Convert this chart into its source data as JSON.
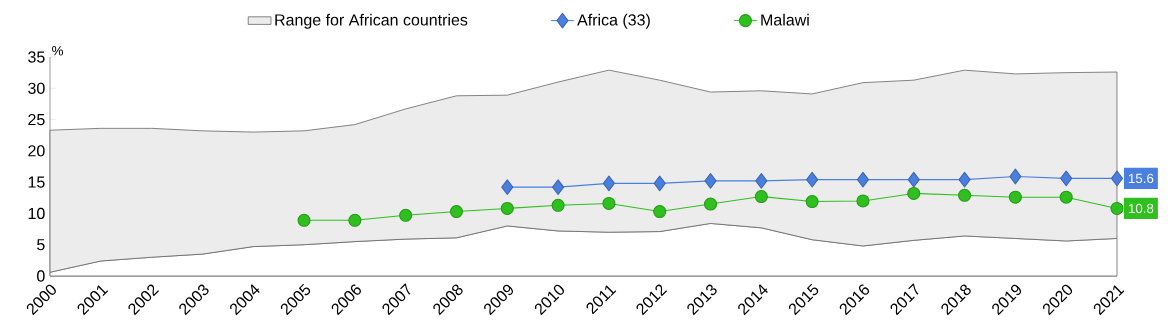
{
  "chart_data": {
    "type": "line",
    "ylabel": "%",
    "stacked": true,
    "categories": [
      "2000",
      "2001",
      "2002",
      "2003",
      "2004",
      "2005",
      "2006",
      "2007",
      "2008",
      "2009",
      "2010",
      "2011",
      "2012",
      "2013",
      "2014",
      "2015",
      "2016",
      "2017",
      "2018",
      "2019",
      "2020",
      "2021"
    ],
    "ylim": [
      0,
      35
    ],
    "yticks": [
      0,
      5,
      10,
      15,
      20,
      25,
      30,
      35
    ],
    "legend": "top",
    "series": [
      {
        "type": "area",
        "color": "#ffffff",
        "values": [
          0.6,
          2.4,
          3.0,
          3.5,
          4.7,
          5.0,
          5.5,
          5.9,
          6.1,
          8.0,
          7.2,
          7.0,
          7.1,
          8.4,
          7.7,
          5.8,
          4.8,
          5.7,
          6.4,
          6.0,
          5.6,
          6.0
        ]
      },
      {
        "name": "Range for African countries",
        "type": "area",
        "color": "#ececec",
        "values": [
          22.7,
          21.2,
          20.6,
          19.7,
          18.3,
          18.2,
          18.7,
          20.8,
          22.7,
          20.9,
          23.8,
          25.9,
          24.2,
          21.0,
          21.9,
          23.3,
          26.1,
          25.6,
          26.5,
          26.3,
          26.9,
          26.6
        ]
      },
      {
        "name": "Africa (33)",
        "color": "#4a7fe0",
        "marker": "diamond",
        "values": [
          null,
          null,
          null,
          null,
          null,
          null,
          null,
          null,
          null,
          14.2,
          14.2,
          14.8,
          14.8,
          15.2,
          15.2,
          15.4,
          15.4,
          15.4,
          15.4,
          15.9,
          15.6,
          15.6
        ],
        "value_labels": [
          null,
          null,
          null,
          null,
          null,
          null,
          null,
          null,
          null,
          null,
          null,
          null,
          null,
          null,
          null,
          null,
          null,
          null,
          null,
          null,
          null,
          "15.6"
        ]
      },
      {
        "name": "Malawi",
        "color": "#2fbf1f",
        "marker": "circle",
        "values": [
          null,
          null,
          null,
          null,
          null,
          8.9,
          8.9,
          9.7,
          10.3,
          10.8,
          11.3,
          11.6,
          10.3,
          11.5,
          12.7,
          11.9,
          12.0,
          13.2,
          12.9,
          12.6,
          12.6,
          10.8
        ],
        "value_labels": [
          null,
          null,
          null,
          null,
          null,
          null,
          null,
          null,
          null,
          null,
          null,
          null,
          null,
          null,
          null,
          null,
          null,
          null,
          null,
          null,
          null,
          "10.8"
        ]
      }
    ]
  }
}
